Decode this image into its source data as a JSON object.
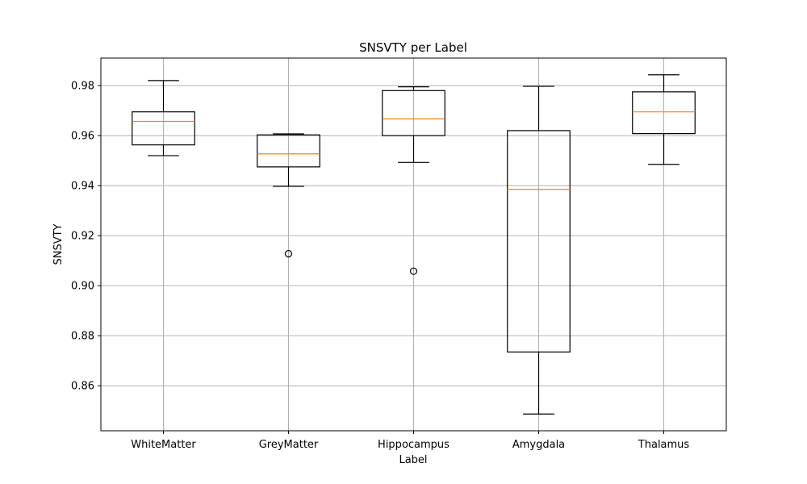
{
  "chart_data": {
    "type": "box",
    "title": "SNSVTY per Label",
    "xlabel": "Label",
    "ylabel": "SNSVTY",
    "ylim": [
      0.842,
      0.991
    ],
    "yticks": [
      0.86,
      0.88,
      0.9,
      0.92,
      0.94,
      0.96,
      0.98
    ],
    "ytick_labels": [
      "0.86",
      "0.88",
      "0.90",
      "0.92",
      "0.94",
      "0.96",
      "0.98"
    ],
    "grid": true,
    "categories": [
      "WhiteMatter",
      "GreyMatter",
      "Hippocampus",
      "Amygdala",
      "Thalamus"
    ],
    "boxes": [
      {
        "label": "WhiteMatter",
        "whisker_low": 0.952,
        "q1": 0.9563,
        "median": 0.9657,
        "q3": 0.9695,
        "whisker_high": 0.982,
        "outliers": []
      },
      {
        "label": "GreyMatter",
        "whisker_low": 0.9397,
        "q1": 0.9475,
        "median": 0.9527,
        "q3": 0.9603,
        "whisker_high": 0.9607,
        "outliers": [
          0.9128
        ]
      },
      {
        "label": "Hippocampus",
        "whisker_low": 0.9493,
        "q1": 0.96,
        "median": 0.9667,
        "q3": 0.978,
        "whisker_high": 0.9795,
        "outliers": [
          0.9058
        ]
      },
      {
        "label": "Amygdala",
        "whisker_low": 0.8487,
        "q1": 0.8735,
        "median": 0.9385,
        "q3": 0.962,
        "whisker_high": 0.9797,
        "outliers": []
      },
      {
        "label": "Thalamus",
        "whisker_low": 0.9485,
        "q1": 0.9608,
        "median": 0.9695,
        "q3": 0.9775,
        "whisker_high": 0.9843,
        "outliers": []
      }
    ],
    "colors": {
      "box": "#000000",
      "median": "#ff7f0e",
      "grid": "#b0b0b0"
    }
  }
}
